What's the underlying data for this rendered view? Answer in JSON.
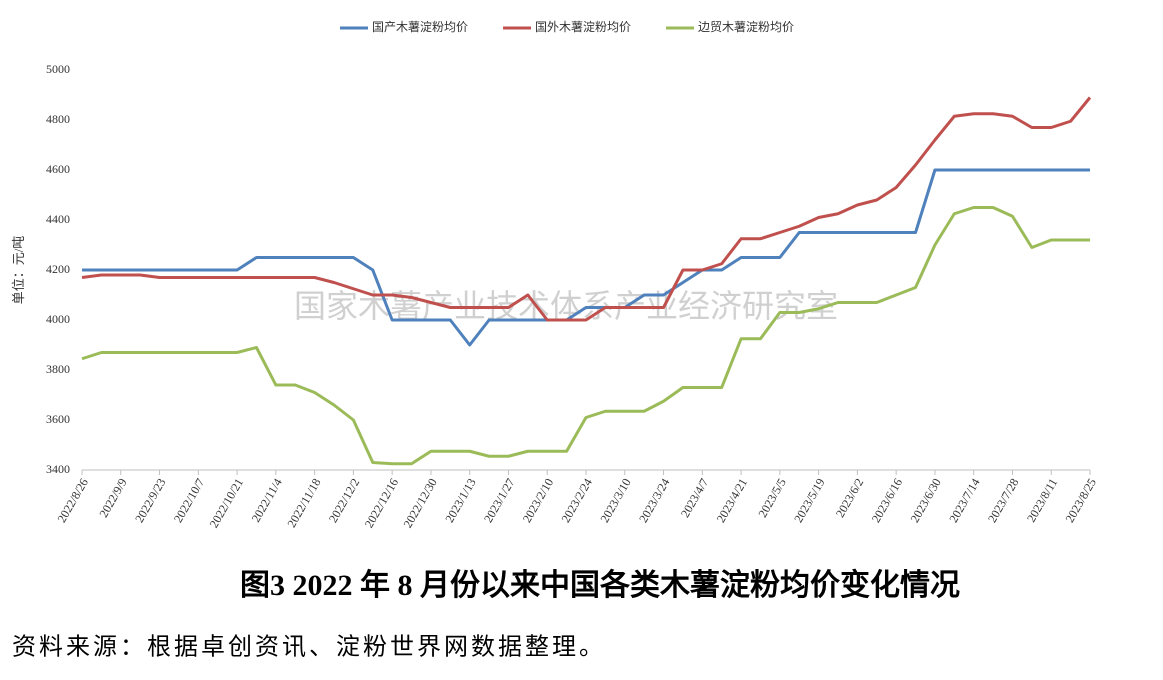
{
  "chart_data": {
    "type": "line",
    "y_label": "单位：元/吨",
    "watermark": "国家木薯产业技术体系产业经济研究室",
    "caption": "图3   2022 年 8 月份以来中国各类木薯淀粉均价变化情况",
    "source": "资料来源：根据卓创资讯、淀粉世界网数据整理。",
    "categories": [
      "2022/8/26",
      null,
      "2022/9/9",
      null,
      "2022/9/23",
      null,
      "2022/10/7",
      null,
      "2022/10/21",
      null,
      "2022/11/4",
      null,
      "2022/11/18",
      null,
      "2022/12/2",
      null,
      "2022/12/16",
      null,
      "2022/12/30",
      null,
      "2023/1/13",
      null,
      "2023/1/27",
      null,
      "2023/2/10",
      null,
      "2023/2/24",
      null,
      "2023/3/10",
      null,
      "2023/3/24",
      null,
      "2023/4/7",
      null,
      "2023/4/21",
      null,
      "2023/5/5",
      null,
      "2023/5/19",
      null,
      "2023/6/2",
      null,
      "2023/6/16",
      null,
      "2023/6/30",
      null,
      "2023/7/14",
      null,
      "2023/7/28",
      null,
      "2023/8/11",
      null,
      "2023/8/25"
    ],
    "series": [
      {
        "name": "国产木薯淀粉均价",
        "color": "#4f81bd",
        "values": [
          4200,
          4200,
          4200,
          4200,
          4200,
          4200,
          4200,
          4200,
          4200,
          4250,
          4250,
          4250,
          4250,
          4250,
          4250,
          4200,
          4000,
          4000,
          4000,
          4000,
          3900,
          4000,
          4000,
          4000,
          4000,
          4000,
          4050,
          4050,
          4050,
          4100,
          4100,
          4150,
          4200,
          4200,
          4250,
          4250,
          4250,
          4350,
          4350,
          4350,
          4350,
          4350,
          4350,
          4350,
          4600,
          4600,
          4600,
          4600,
          4600,
          4600,
          4600,
          4600,
          4600
        ]
      },
      {
        "name": "国外木薯淀粉均价",
        "color": "#c0504d",
        "values": [
          4170,
          4180,
          4180,
          4180,
          4170,
          4170,
          4170,
          4170,
          4170,
          4170,
          4170,
          4170,
          4170,
          4150,
          4125,
          4100,
          4100,
          4090,
          4070,
          4050,
          4050,
          4050,
          4050,
          4100,
          4000,
          4000,
          4000,
          4050,
          4050,
          4050,
          4050,
          4200,
          4200,
          4225,
          4325,
          4325,
          4350,
          4375,
          4410,
          4425,
          4460,
          4480,
          4530,
          4620,
          4720,
          4815,
          4825,
          4825,
          4815,
          4770,
          4770,
          4795,
          4890
        ]
      },
      {
        "name": "边贸木薯淀粉均价",
        "color": "#9bbb59",
        "values": [
          3845,
          3870,
          3870,
          3870,
          3870,
          3870,
          3870,
          3870,
          3870,
          3890,
          3740,
          3740,
          3710,
          3660,
          3600,
          3430,
          3425,
          3425,
          3475,
          3475,
          3475,
          3455,
          3455,
          3475,
          3475,
          3475,
          3610,
          3635,
          3635,
          3635,
          3675,
          3730,
          3730,
          3730,
          3925,
          3925,
          4030,
          4030,
          4045,
          4070,
          4070,
          4070,
          4100,
          4130,
          4300,
          4425,
          4450,
          4450,
          4415,
          4290,
          4320,
          4320,
          4320
        ]
      }
    ],
    "ylim": [
      3400,
      5000
    ],
    "yticks": [
      3400,
      3600,
      3800,
      4000,
      4200,
      4400,
      4600,
      4800,
      5000
    ],
    "grid": false
  }
}
